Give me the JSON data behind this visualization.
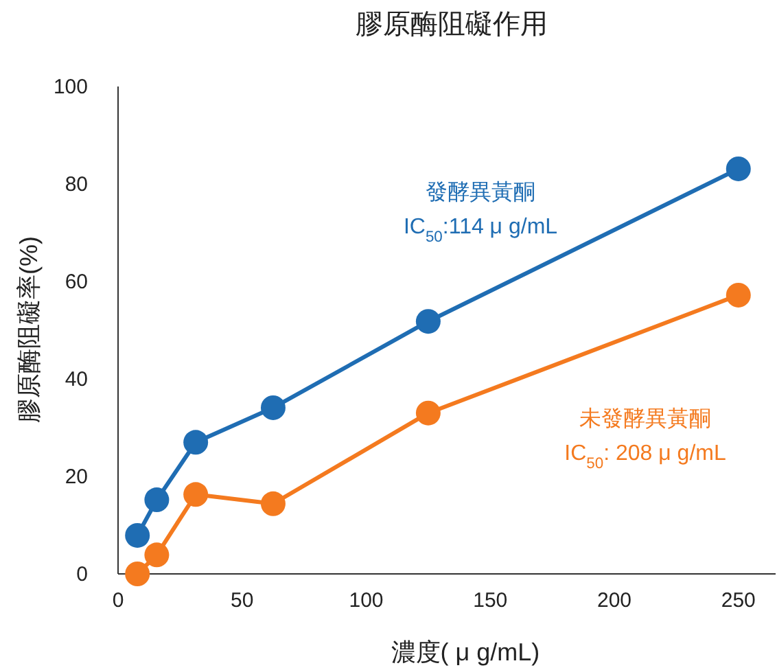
{
  "chart_data": {
    "type": "line",
    "title": "膠原酶阻礙作用",
    "xlabel": "濃度( μ g/mL)",
    "ylabel": "膠原酶阻礙率(%)",
    "xlim": [
      0,
      265
    ],
    "xticks": [
      0,
      50,
      100,
      150,
      200,
      250
    ],
    "ylim": [
      0,
      100
    ],
    "yticks": [
      0,
      20,
      40,
      60,
      80,
      100
    ],
    "marker": "circle",
    "line_style": "solid",
    "grid": false,
    "series": [
      {
        "name": "發酵異黃酮",
        "color": "#1f6db3",
        "x": [
          7.8,
          15.6,
          31.3,
          62.5,
          125,
          250
        ],
        "values": [
          7.9,
          15.2,
          27.0,
          34.1,
          51.8,
          83.1
        ]
      },
      {
        "name": "未發酵異黃酮",
        "color": "#f47a1f",
        "x": [
          7.8,
          15.6,
          31.3,
          62.5,
          125,
          250
        ],
        "values": [
          0,
          3.9,
          16.3,
          14.4,
          33.0,
          57.2
        ]
      }
    ],
    "annotations": [
      "IC$_{50}$:114 μ g/mL",
      "IC$_{50}$: 208 μ g/mL"
    ]
  }
}
